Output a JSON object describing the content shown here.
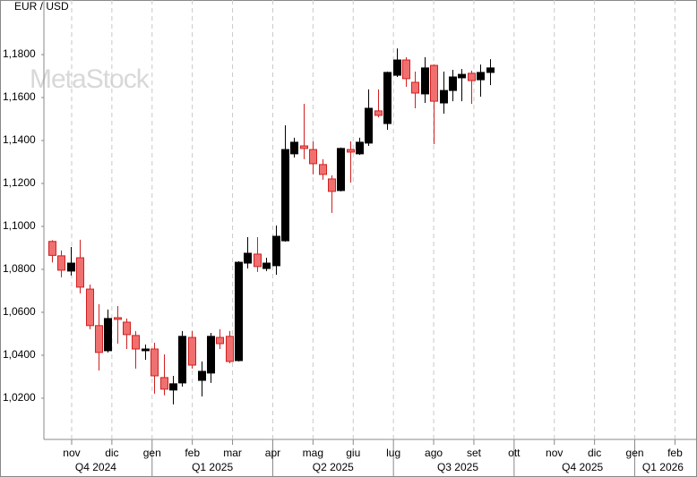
{
  "chart_data": {
    "type": "candlestick",
    "title": "EUR / USD",
    "watermark": "MetaStock",
    "up_color": "#000000",
    "down_color": "#f07070",
    "down_edge": "#d02020",
    "ylim": [
      1.0008,
      1.2046
    ],
    "yticks": [
      {
        "value": 1.02,
        "label": "1,0200"
      },
      {
        "value": 1.04,
        "label": "1,0400"
      },
      {
        "value": 1.06,
        "label": "1,0600"
      },
      {
        "value": 1.08,
        "label": "1,0800"
      },
      {
        "value": 1.1,
        "label": "1,1000"
      },
      {
        "value": 1.12,
        "label": "1,1200"
      },
      {
        "value": 1.14,
        "label": "1,1400"
      },
      {
        "value": 1.16,
        "label": "1,1600"
      },
      {
        "value": 1.18,
        "label": "1,1800"
      }
    ],
    "xlim": [
      0.31,
      16.28
    ],
    "xticks": [
      {
        "value": 1,
        "label": "nov"
      },
      {
        "value": 2,
        "label": "dic"
      },
      {
        "value": 3,
        "label": "gen"
      },
      {
        "value": 4,
        "label": "feb"
      },
      {
        "value": 5,
        "label": "mar"
      },
      {
        "value": 6,
        "label": "apr"
      },
      {
        "value": 7,
        "label": "mag"
      },
      {
        "value": 8,
        "label": "giu"
      },
      {
        "value": 9,
        "label": "lug"
      },
      {
        "value": 10,
        "label": "ago"
      },
      {
        "value": 11,
        "label": "set"
      },
      {
        "value": 12,
        "label": "ott"
      },
      {
        "value": 13,
        "label": "nov"
      },
      {
        "value": 14,
        "label": "dic"
      },
      {
        "value": 15,
        "label": "gen"
      },
      {
        "value": 16,
        "label": "feb"
      }
    ],
    "quarter_ticks": [
      {
        "value": 1.6,
        "label": "Q4 2024"
      },
      {
        "value": 4.5,
        "label": "Q1 2025"
      },
      {
        "value": 7.5,
        "label": "Q2 2025"
      },
      {
        "value": 10.6,
        "label": "Q3 2025"
      },
      {
        "value": 13.7,
        "label": "Q4 2025"
      },
      {
        "value": 15.7,
        "label": "Q1 2026"
      }
    ],
    "x": [
      0.51,
      0.74,
      0.97,
      1.2,
      1.44,
      1.67,
      1.9,
      2.13,
      2.36,
      2.59,
      2.83,
      3.06,
      3.29,
      3.52,
      3.75,
      3.98,
      4.22,
      4.45,
      4.68,
      4.91,
      5.14,
      5.37,
      5.61,
      5.84,
      6.07,
      6.3,
      6.53,
      6.76,
      6.99,
      7.23,
      7.46,
      7.69,
      7.92,
      8.15,
      8.38,
      8.62,
      8.85,
      9.08,
      9.31,
      9.54,
      9.77,
      10.0,
      10.24,
      10.47,
      10.7,
      10.93,
      11.16,
      11.4
    ],
    "open": [
      1.093,
      1.0863,
      1.0792,
      1.0854,
      1.0708,
      1.0538,
      1.0421,
      1.0575,
      1.0554,
      1.0492,
      1.0421,
      1.0429,
      1.0296,
      1.0238,
      1.0271,
      1.0483,
      1.0283,
      1.0317,
      1.0483,
      1.0488,
      1.0375,
      1.0829,
      1.0871,
      1.0804,
      1.0817,
      1.0933,
      1.1338,
      1.1375,
      1.1358,
      1.1288,
      1.1221,
      1.1167,
      1.1358,
      1.1338,
      1.1388,
      1.1538,
      1.1479,
      1.1704,
      1.1775,
      1.1671,
      1.1617,
      1.175,
      1.1575,
      1.1633,
      1.1692,
      1.1713,
      1.1683,
      1.1717
    ],
    "high": [
      1.0936,
      1.0888,
      1.0904,
      1.0938,
      1.0729,
      1.0638,
      1.0613,
      1.0629,
      1.0571,
      1.0513,
      1.045,
      1.0458,
      1.0404,
      1.0304,
      1.0513,
      1.0513,
      1.0371,
      1.0504,
      1.0521,
      1.0513,
      1.0838,
      1.095,
      1.095,
      1.0854,
      1.1004,
      1.1471,
      1.1413,
      1.1571,
      1.1396,
      1.1313,
      1.1238,
      1.1367,
      1.1396,
      1.1413,
      1.1638,
      1.1638,
      1.1721,
      1.1829,
      1.1788,
      1.1721,
      1.1788,
      1.1754,
      1.1721,
      1.1729,
      1.1733,
      1.1725,
      1.1754,
      1.1779
    ],
    "low": [
      1.0832,
      1.0763,
      1.0771,
      1.0688,
      1.0521,
      1.0329,
      1.0413,
      1.0454,
      1.0429,
      1.0338,
      1.0379,
      1.0221,
      1.0213,
      1.0171,
      1.0254,
      1.0338,
      1.0208,
      1.0271,
      1.0429,
      1.0363,
      1.0371,
      1.0804,
      1.0788,
      1.0792,
      1.0775,
      1.0929,
      1.1321,
      1.1313,
      1.1242,
      1.1217,
      1.1063,
      1.1163,
      1.1204,
      1.1333,
      1.1375,
      1.1508,
      1.145,
      1.1696,
      1.165,
      1.155,
      1.1575,
      1.1383,
      1.1525,
      1.1583,
      1.1583,
      1.1571,
      1.1604,
      1.1658
    ],
    "close": [
      1.0865,
      1.0796,
      1.0829,
      1.0717,
      1.0538,
      1.0413,
      1.0571,
      1.0567,
      1.0496,
      1.0429,
      1.0429,
      1.0304,
      1.0242,
      1.0267,
      1.0488,
      1.0354,
      1.0325,
      1.0488,
      1.0454,
      1.0371,
      1.0833,
      1.0875,
      1.0813,
      1.0829,
      1.0954,
      1.1358,
      1.1392,
      1.1363,
      1.1292,
      1.1242,
      1.1163,
      1.1363,
      1.1346,
      1.1392,
      1.155,
      1.1517,
      1.1717,
      1.1775,
      1.1688,
      1.1621,
      1.1738,
      1.1583,
      1.1633,
      1.1696,
      1.1708,
      1.1679,
      1.1717,
      1.1738
    ]
  }
}
